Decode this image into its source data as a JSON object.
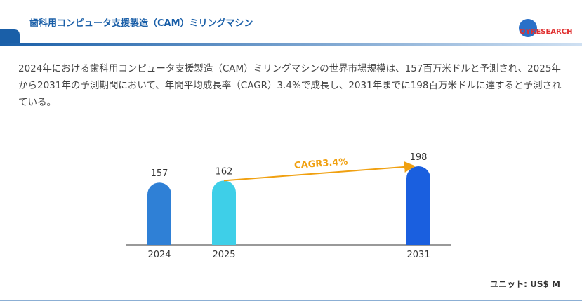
{
  "header": {
    "title": "歯科用コンピュータ支援製造（CAM）ミリングマシン",
    "logo": "QYRESEARCH"
  },
  "description": "2024年における歯科用コンピュータ支援製造（CAM）ミリングマシンの世界市場規模は、157百万米ドルと予測され、2025年から2031年の予測期間において、年間平均成長率（CAGR）3.4%で成長し、2031年までに198百万米ドルに達すると予測されている。",
  "chart_data": {
    "type": "bar",
    "categories": [
      "2024",
      "2025",
      "2031"
    ],
    "values": [
      157,
      162,
      198
    ],
    "colors": [
      "#2f80d6",
      "#3ecfe8",
      "#1a5fdf"
    ],
    "annotation": "CAGR3.4%",
    "unit": "ユニット: US$ M"
  }
}
